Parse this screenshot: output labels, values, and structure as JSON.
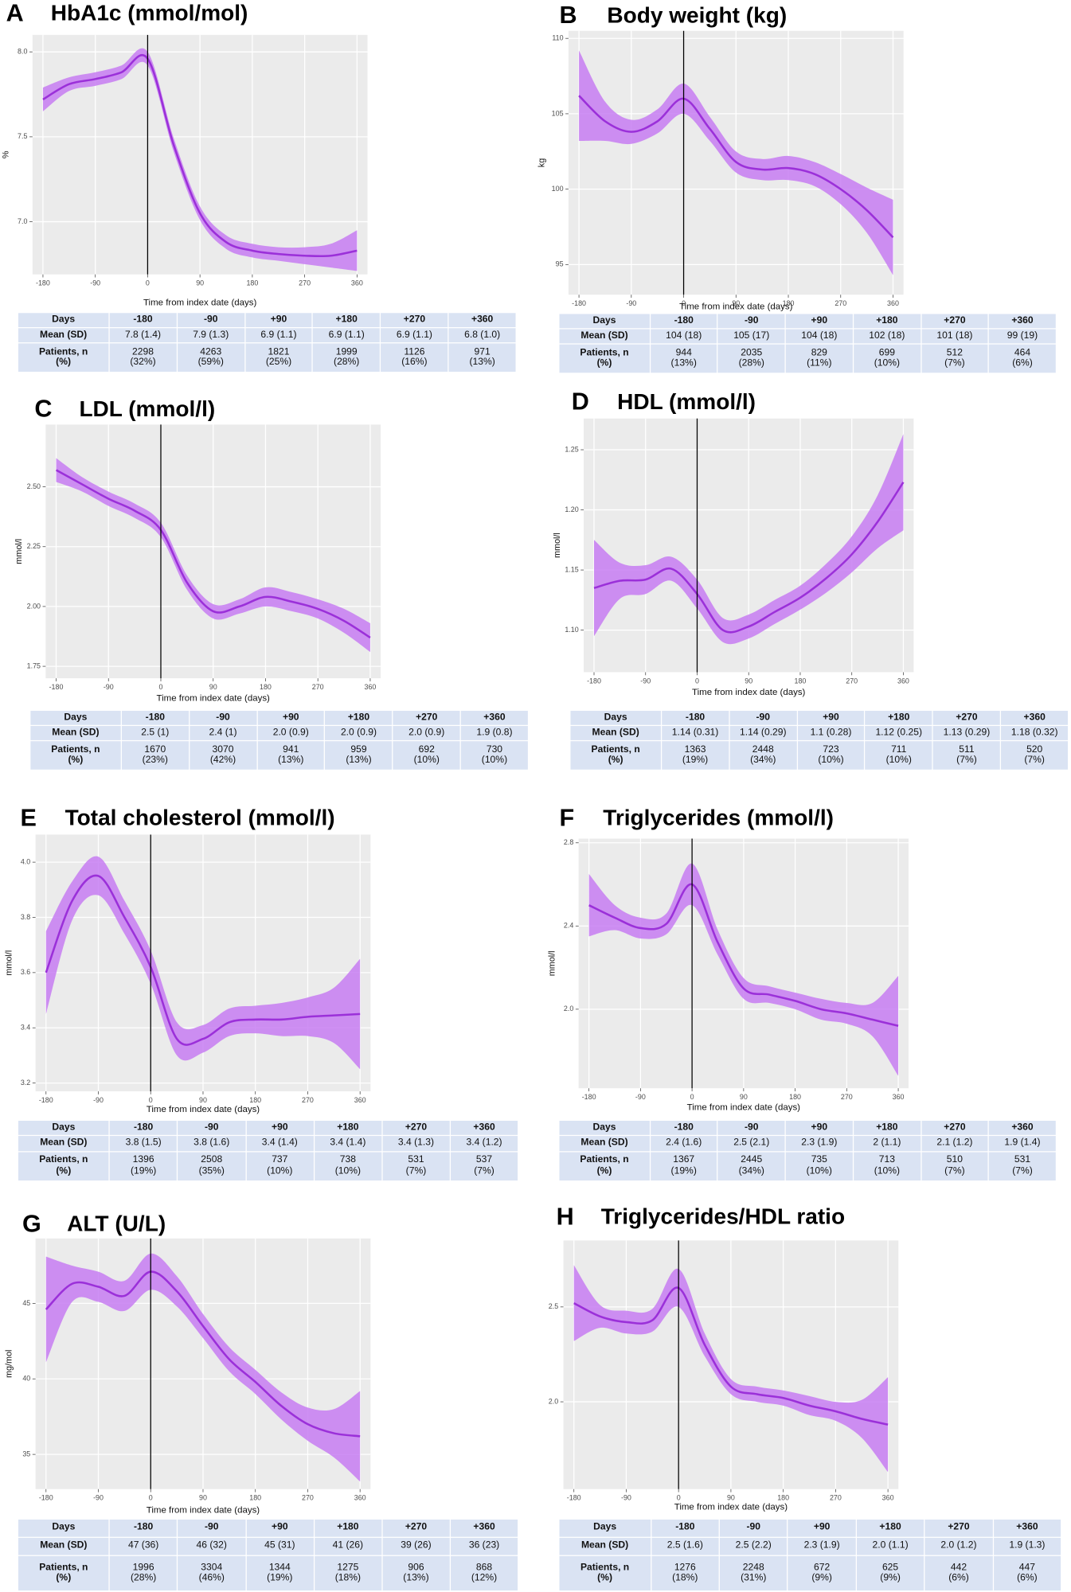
{
  "chart_data": [
    {
      "type": "line",
      "label": "A",
      "title": "HbA1c (mmol/mol)",
      "ylabel": "%",
      "xlabel": "Time from index date (days)",
      "x": [
        -180,
        -135,
        -90,
        -45,
        0,
        45,
        90,
        135,
        180,
        225,
        270,
        315,
        360
      ],
      "values": [
        7.72,
        7.81,
        7.84,
        7.88,
        7.96,
        7.45,
        7.05,
        6.88,
        6.83,
        6.81,
        6.8,
        6.8,
        6.83
      ],
      "lower": [
        7.65,
        7.77,
        7.8,
        7.84,
        7.92,
        7.41,
        7.01,
        6.84,
        6.79,
        6.77,
        6.75,
        6.73,
        6.71
      ],
      "upper": [
        7.79,
        7.85,
        7.88,
        7.92,
        8.0,
        7.49,
        7.09,
        6.92,
        6.87,
        6.85,
        6.85,
        6.87,
        6.95
      ],
      "color": "#9b30d9",
      "band_color": "#c77cf2",
      "vline": 0,
      "grid": true,
      "xlim": [
        -198,
        378
      ],
      "ylim": [
        6.69,
        8.1
      ],
      "xticks": [
        -180,
        -90,
        0,
        90,
        180,
        270,
        360
      ],
      "yticks": [
        {
          "value": 7,
          "label": "7.0"
        },
        7.5,
        {
          "value": 8,
          "label": "8.0"
        }
      ],
      "table": {
        "rows": [
          [
            "Days",
            "-180",
            "-90",
            "+90",
            "+180",
            "+270",
            "+360"
          ],
          [
            "Mean (SD)",
            "7.8 (1.4)",
            "7.9 (1.3)",
            "6.9 (1.1)",
            "6.9 (1.1)",
            "6.9 (1.1)",
            "6.8 (1.0)"
          ],
          [
            "Patients, n\n(%)",
            "2298\n(32%)",
            "4263\n(59%)",
            "1821\n(25%)",
            "1999\n(28%)",
            "1126\n(16%)",
            "971\n(13%)"
          ]
        ]
      }
    },
    {
      "type": "line",
      "label": "B",
      "title": "Body weight (kg)",
      "ylabel": "kg",
      "xlabel": "Time from index date (days)",
      "x": [
        -180,
        -135,
        -90,
        -45,
        0,
        45,
        90,
        135,
        180,
        225,
        270,
        315,
        360
      ],
      "values": [
        106.2,
        104.5,
        103.8,
        104.5,
        106,
        104,
        101.8,
        101.3,
        101.4,
        101,
        100,
        98.6,
        96.8
      ],
      "lower": [
        103.2,
        103.2,
        103,
        103.7,
        105,
        103.2,
        101.1,
        100.6,
        100.6,
        100.2,
        99,
        97.1,
        94.3
      ],
      "upper": [
        109.2,
        105.8,
        104.6,
        105.3,
        107,
        104.8,
        102.5,
        102,
        102.2,
        101.8,
        101,
        100.1,
        99.3
      ],
      "color": "#9b30d9",
      "band_color": "#c77cf2",
      "vline": 0,
      "grid": true,
      "xlim": [
        -198,
        378
      ],
      "ylim": [
        93,
        110.5
      ],
      "xticks": [
        -180,
        -90,
        0,
        90,
        180,
        270,
        360
      ],
      "yticks": [
        95,
        100,
        105,
        110
      ],
      "table": {
        "rows": [
          [
            "Days",
            "-180",
            "-90",
            "+90",
            "+180",
            "+270",
            "+360"
          ],
          [
            "Mean (SD)",
            "104 (18)",
            "105 (17)",
            "104 (18)",
            "102 (18)",
            "101 (18)",
            "99 (19)"
          ],
          [
            "Patients, n\n(%)",
            "944\n(13%)",
            "2035\n(28%)",
            "829\n(11%)",
            "699\n(10%)",
            "512\n(7%)",
            "464\n(6%)"
          ]
        ]
      }
    },
    {
      "type": "line",
      "label": "C",
      "title": "LDL (mmol/l)",
      "ylabel": "mmol/l",
      "xlabel": "Time from index date (days)",
      "x": [
        -180,
        -135,
        -90,
        -45,
        0,
        45,
        90,
        135,
        180,
        225,
        270,
        315,
        360
      ],
      "values": [
        2.57,
        2.51,
        2.45,
        2.4,
        2.32,
        2.1,
        1.98,
        2.0,
        2.04,
        2.02,
        1.99,
        1.94,
        1.87
      ],
      "lower": [
        2.52,
        2.48,
        2.42,
        2.37,
        2.29,
        2.07,
        1.95,
        1.97,
        2.0,
        1.98,
        1.95,
        1.89,
        1.81
      ],
      "upper": [
        2.62,
        2.54,
        2.48,
        2.43,
        2.35,
        2.13,
        2.01,
        2.03,
        2.08,
        2.06,
        2.03,
        1.99,
        1.93
      ],
      "color": "#9b30d9",
      "band_color": "#c77cf2",
      "vline": 0,
      "grid": true,
      "xlim": [
        -198,
        378
      ],
      "ylim": [
        1.7,
        2.76
      ],
      "xticks": [
        -180,
        -90,
        0,
        90,
        180,
        270,
        360
      ],
      "yticks": [
        1.75,
        {
          "value": 2,
          "label": "2.00"
        },
        2.25,
        {
          "value": 2.5,
          "label": "2.50"
        }
      ],
      "table": {
        "rows": [
          [
            "Days",
            "-180",
            "-90",
            "+90",
            "+180",
            "+270",
            "+360"
          ],
          [
            "Mean (SD)",
            "2.5 (1)",
            "2.4 (1)",
            "2.0 (0.9)",
            "2.0 (0.9)",
            "2.0 (0.9)",
            "1.9 (0.8)"
          ],
          [
            "Patients, n\n(%)",
            "1670\n(23%)",
            "3070\n(42%)",
            "941\n(13%)",
            "959\n(13%)",
            "692\n(10%)",
            "730\n(10%)"
          ]
        ]
      }
    },
    {
      "type": "line",
      "label": "D",
      "title": "HDL (mmol/l)",
      "ylabel": "mmol/l",
      "xlabel": "Time from index date (days)",
      "x": [
        -180,
        -135,
        -90,
        -45,
        0,
        45,
        90,
        135,
        180,
        225,
        270,
        315,
        360
      ],
      "values": [
        1.135,
        1.141,
        1.142,
        1.151,
        1.13,
        1.1,
        1.103,
        1.115,
        1.127,
        1.143,
        1.163,
        1.19,
        1.223
      ],
      "lower": [
        1.095,
        1.126,
        1.13,
        1.141,
        1.118,
        1.09,
        1.093,
        1.105,
        1.117,
        1.131,
        1.148,
        1.168,
        1.183
      ],
      "upper": [
        1.175,
        1.156,
        1.154,
        1.161,
        1.142,
        1.11,
        1.113,
        1.125,
        1.137,
        1.155,
        1.178,
        1.212,
        1.263
      ],
      "color": "#9b30d9",
      "band_color": "#c77cf2",
      "vline": 0,
      "grid": true,
      "xlim": [
        -198,
        378
      ],
      "ylim": [
        1.065,
        1.276
      ],
      "xticks": [
        -180,
        -90,
        0,
        90,
        180,
        270,
        360
      ],
      "yticks": [
        {
          "value": 1.1,
          "label": "1.10"
        },
        1.15,
        {
          "value": 1.2,
          "label": "1.20"
        },
        1.25
      ],
      "table": {
        "rows": [
          [
            "Days",
            "-180",
            "-90",
            "+90",
            "+180",
            "+270",
            "+360"
          ],
          [
            "Mean (SD)",
            "1.14 (0.31)",
            "1.14 (0.29)",
            "1.1 (0.28)",
            "1.12 (0.25)",
            "1.13 (0.29)",
            "1.18 (0.32)"
          ],
          [
            "Patients, n\n(%)",
            "1363\n(19%)",
            "2448\n(34%)",
            "723\n(10%)",
            "711\n(10%)",
            "511\n(7%)",
            "520\n(7%)"
          ]
        ]
      }
    },
    {
      "type": "line",
      "label": "E",
      "title": "Total cholesterol (mmol/l)",
      "ylabel": "mmol/l",
      "xlabel": "Time from index date (days)",
      "x": [
        -180,
        -135,
        -90,
        -45,
        0,
        45,
        90,
        135,
        180,
        225,
        270,
        315,
        360
      ],
      "values": [
        3.6,
        3.86,
        3.95,
        3.8,
        3.62,
        3.36,
        3.36,
        3.42,
        3.43,
        3.43,
        3.44,
        3.445,
        3.45
      ],
      "lower": [
        3.45,
        3.79,
        3.88,
        3.74,
        3.56,
        3.3,
        3.31,
        3.37,
        3.38,
        3.37,
        3.37,
        3.345,
        3.25
      ],
      "upper": [
        3.75,
        3.93,
        4.02,
        3.86,
        3.68,
        3.42,
        3.41,
        3.47,
        3.48,
        3.49,
        3.51,
        3.545,
        3.65
      ],
      "color": "#9b30d9",
      "band_color": "#c77cf2",
      "vline": 0,
      "grid": true,
      "xlim": [
        -198,
        378
      ],
      "ylim": [
        3.17,
        4.1
      ],
      "xticks": [
        -180,
        -90,
        0,
        90,
        180,
        270,
        360
      ],
      "yticks": [
        3.2,
        3.4,
        3.6,
        3.8,
        {
          "value": 4,
          "label": "4.0"
        }
      ],
      "table": {
        "rows": [
          [
            "Days",
            "-180",
            "-90",
            "+90",
            "+180",
            "+270",
            "+360"
          ],
          [
            "Mean (SD)",
            "3.8 (1.5)",
            "3.8 (1.6)",
            "3.4 (1.4)",
            "3.4 (1.4)",
            "3.4 (1.3)",
            "3.4 (1.2)"
          ],
          [
            "Patients, n\n(%)",
            "1396\n(19%)",
            "2508\n(35%)",
            "737\n(10%)",
            "738\n(10%)",
            "531\n(7%)",
            "537\n(7%)"
          ]
        ]
      }
    },
    {
      "type": "line",
      "label": "F",
      "title": "Triglycerides (mmol/l)",
      "ylabel": "mmol/l",
      "xlabel": "Time from index date (days)",
      "x": [
        -180,
        -135,
        -90,
        -45,
        0,
        45,
        90,
        135,
        180,
        225,
        270,
        315,
        360
      ],
      "values": [
        2.5,
        2.44,
        2.39,
        2.41,
        2.6,
        2.32,
        2.1,
        2.07,
        2.04,
        2.0,
        1.98,
        1.95,
        1.92
      ],
      "lower": [
        2.35,
        2.38,
        2.34,
        2.36,
        2.5,
        2.26,
        2.05,
        2.03,
        2.0,
        1.95,
        1.93,
        1.87,
        1.68
      ],
      "upper": [
        2.65,
        2.5,
        2.44,
        2.46,
        2.7,
        2.38,
        2.15,
        2.11,
        2.08,
        2.05,
        2.03,
        2.03,
        2.16
      ],
      "color": "#9b30d9",
      "band_color": "#c77cf2",
      "vline": 0,
      "grid": true,
      "xlim": [
        -198,
        378
      ],
      "ylim": [
        1.62,
        2.82
      ],
      "xticks": [
        -180,
        -90,
        0,
        90,
        180,
        270,
        360
      ],
      "yticks": [
        {
          "value": 2,
          "label": "2.0"
        },
        2.4,
        2.8
      ],
      "table": {
        "rows": [
          [
            "Days",
            "-180",
            "-90",
            "+90",
            "+180",
            "+270",
            "+360"
          ],
          [
            "Mean (SD)",
            "2.4 (1.6)",
            "2.5 (2.1)",
            "2.3 (1.9)",
            "2 (1.1)",
            "2.1 (1.2)",
            "1.9 (1.4)"
          ],
          [
            "Patients, n\n(%)",
            "1367\n(19%)",
            "2445\n(34%)",
            "735\n(10%)",
            "713\n(10%)",
            "510\n(7%)",
            "531\n(7%)"
          ]
        ]
      }
    },
    {
      "type": "line",
      "label": "G",
      "title": "ALT (U/L)",
      "ylabel": "mg/mol",
      "xlabel": "Time from index date (days)",
      "x": [
        -180,
        -135,
        -90,
        -45,
        0,
        45,
        90,
        135,
        180,
        225,
        270,
        315,
        360
      ],
      "values": [
        44.6,
        46.3,
        46.1,
        45.5,
        47.1,
        45.8,
        43.5,
        41.3,
        39.8,
        38.2,
        37,
        36.4,
        36.2
      ],
      "lower": [
        41.1,
        45.1,
        45.1,
        44.5,
        45.9,
        44.8,
        42.7,
        40.5,
        39,
        37.3,
        35.9,
        34.8,
        33.2
      ],
      "upper": [
        48.1,
        47.5,
        47.1,
        46.5,
        48.3,
        46.8,
        44.3,
        42.1,
        40.6,
        39.1,
        38.1,
        38,
        39.2
      ],
      "color": "#9b30d9",
      "band_color": "#c77cf2",
      "vline": 0,
      "grid": true,
      "xlim": [
        -198,
        378
      ],
      "ylim": [
        32.7,
        49.3
      ],
      "xticks": [
        -180,
        -90,
        0,
        90,
        180,
        270,
        360
      ],
      "yticks": [
        35,
        40,
        45
      ],
      "table": {
        "rows": [
          [
            "Days",
            "-180",
            "-90",
            "+90",
            "+180",
            "+270",
            "+360"
          ],
          [
            "Mean (SD)",
            "47 (36)",
            "46 (32)",
            "45 (31)",
            "41 (26)",
            "39 (26)",
            "36 (23)"
          ],
          [
            "Patients, n\n(%)",
            "1996\n(28%)",
            "3304\n(46%)",
            "1344\n(19%)",
            "1275\n(18%)",
            "906\n(13%)",
            "868\n(12%)"
          ]
        ]
      }
    },
    {
      "type": "line",
      "label": "H",
      "title": "Triglycerides/HDL ratio",
      "xlabel": "Time from index date (days)",
      "x": [
        -180,
        -135,
        -90,
        -45,
        0,
        45,
        90,
        135,
        180,
        225,
        270,
        315,
        360
      ],
      "values": [
        2.52,
        2.45,
        2.42,
        2.43,
        2.6,
        2.3,
        2.08,
        2.04,
        2.02,
        1.98,
        1.95,
        1.91,
        1.88
      ],
      "lower": [
        2.32,
        2.39,
        2.36,
        2.37,
        2.5,
        2.24,
        2.04,
        2.0,
        1.98,
        1.93,
        1.9,
        1.81,
        1.63
      ],
      "upper": [
        2.72,
        2.51,
        2.48,
        2.49,
        2.7,
        2.36,
        2.12,
        2.08,
        2.06,
        2.03,
        2.0,
        2.01,
        2.13
      ],
      "color": "#9b30d9",
      "band_color": "#c77cf2",
      "vline": 0,
      "grid": true,
      "xlim": [
        -198,
        378
      ],
      "ylim": [
        1.54,
        2.85
      ],
      "xticks": [
        -180,
        -90,
        0,
        90,
        180,
        270,
        360
      ],
      "yticks": [
        {
          "value": 2,
          "label": "2.0"
        },
        2.5
      ],
      "table": {
        "rows": [
          [
            "Days",
            "-180",
            "-90",
            "+90",
            "+180",
            "+270",
            "+360"
          ],
          [
            "Mean (SD)",
            "2.5 (1.6)",
            "2.5 (2.2)",
            "2.3 (1.9)",
            "2.0 (1.1)",
            "2.0 (1.2)",
            "1.9 (1.3)"
          ],
          [
            "Patients, n\n(%)",
            "1276\n(18%)",
            "2248\n(31%)",
            "672\n(9%)",
            "625\n(9%)",
            "442\n(6%)",
            "447\n(6%)"
          ]
        ]
      }
    }
  ]
}
